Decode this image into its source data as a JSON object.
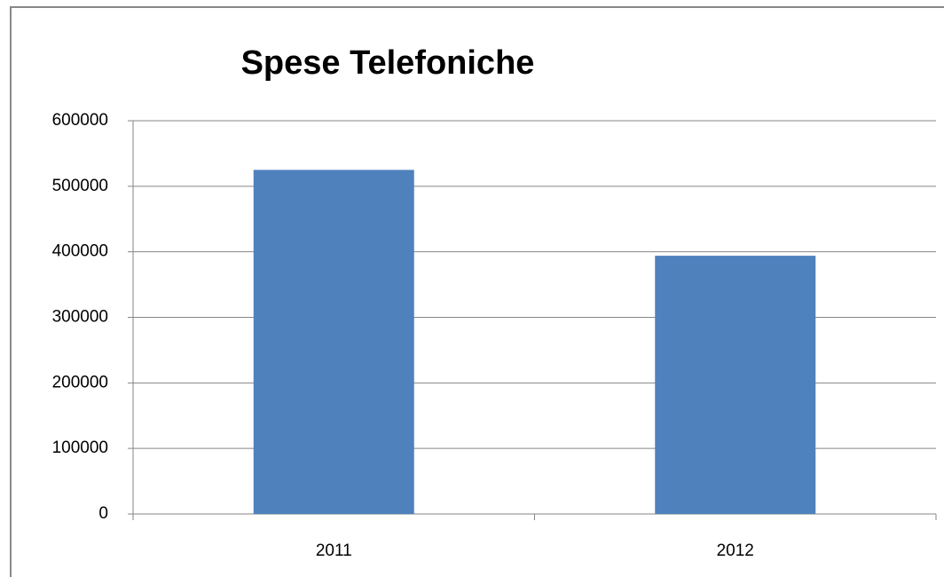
{
  "chart_data": {
    "type": "bar",
    "title": "Spese Telefoniche",
    "categories": [
      "2011",
      "2012"
    ],
    "values": [
      525000,
      394000
    ],
    "color": "#4f81bd",
    "ylim": [
      0,
      600000
    ],
    "yticks": [
      0,
      100000,
      200000,
      300000,
      400000,
      500000,
      600000
    ],
    "grid": true
  }
}
